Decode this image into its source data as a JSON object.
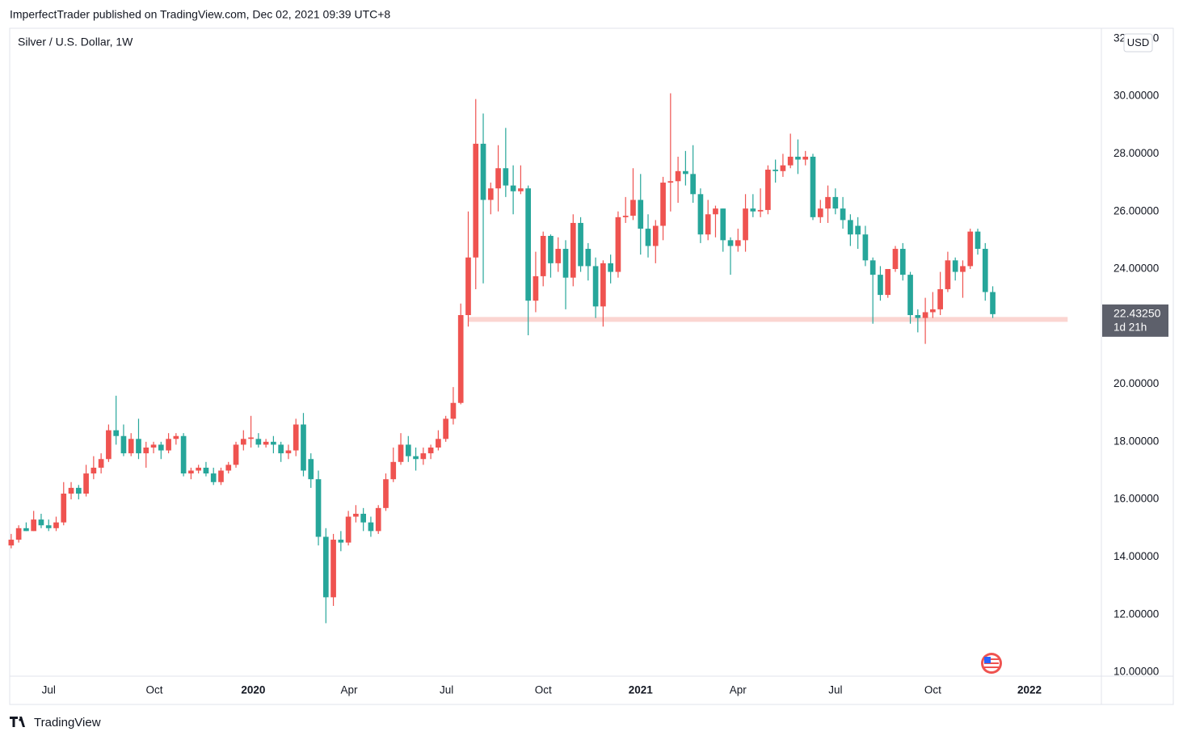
{
  "header": {
    "byline": "ImperfectTrader published on TradingView.com, Dec 02, 2021 09:39 UTC+8"
  },
  "footer": {
    "brand": "TradingView"
  },
  "chart_data": {
    "type": "candlestick",
    "title": "Silver / U.S. Dollar, 1W",
    "currency": "USD",
    "up_color": "#ef5350",
    "down_color": "#26a69a",
    "open": [
      14.4,
      14.6,
      15.0,
      14.9,
      15.3,
      15.1,
      15.0,
      15.2,
      16.2,
      16.4,
      16.2,
      16.9,
      17.1,
      17.4,
      18.4,
      18.2,
      17.6,
      18.1,
      17.6,
      17.8,
      17.9,
      17.7,
      18.1,
      18.2,
      16.9,
      17.0,
      17.1,
      16.9,
      16.6,
      17.0,
      17.2,
      17.9,
      18.1,
      18.1,
      17.9,
      18.0,
      17.9,
      17.6,
      17.7,
      18.6,
      17.4,
      16.7,
      14.7,
      12.6,
      14.6,
      14.5,
      15.4,
      15.5,
      15.2,
      14.9,
      15.7,
      16.7,
      17.3,
      17.9,
      17.5,
      17.4,
      17.6,
      17.8,
      18.1,
      18.8,
      19.35,
      22.4,
      24.4,
      28.35,
      26.4,
      26.8,
      27.5,
      26.9,
      26.7,
      26.8,
      22.9,
      23.75,
      25.15,
      24.2,
      24.7,
      23.7,
      25.6,
      24.7,
      24.1,
      22.7,
      24.2,
      23.9,
      25.8,
      25.85,
      26.4,
      25.4,
      24.8,
      25.5,
      27.0,
      27.05,
      27.4,
      27.3,
      26.6,
      25.2,
      25.9,
      26.1,
      25.0,
      24.8,
      25.0,
      26.1,
      26.0,
      26.05,
      27.45,
      27.4,
      27.6,
      27.9,
      27.8,
      27.9,
      25.8,
      26.1,
      26.5,
      26.1,
      25.7,
      25.5,
      25.2,
      24.3,
      23.8,
      23.1,
      24.0,
      24.7,
      23.8,
      22.4,
      22.3,
      22.5,
      22.6,
      23.3,
      24.3,
      23.9,
      24.1,
      25.3,
      24.7,
      23.2
    ],
    "high": [
      14.8,
      15.1,
      15.2,
      15.6,
      15.5,
      15.3,
      15.4,
      16.6,
      16.6,
      16.5,
      17.2,
      17.5,
      17.6,
      18.6,
      19.6,
      18.6,
      18.3,
      18.8,
      18.0,
      18.0,
      18.0,
      18.3,
      18.3,
      18.3,
      17.1,
      17.2,
      17.3,
      17.1,
      17.1,
      17.3,
      18.0,
      18.4,
      18.9,
      18.3,
      18.1,
      18.2,
      18.0,
      17.9,
      18.8,
      19.0,
      17.6,
      17.0,
      15.0,
      14.8,
      14.9,
      15.6,
      15.8,
      15.7,
      15.4,
      15.8,
      16.9,
      17.8,
      18.3,
      18.2,
      17.8,
      17.8,
      17.9,
      18.4,
      18.9,
      19.9,
      22.8,
      26.0,
      29.9,
      29.4,
      27.0,
      28.3,
      28.9,
      27.6,
      27.6,
      26.9,
      24.6,
      25.3,
      25.2,
      25.1,
      25.0,
      25.9,
      25.8,
      24.9,
      24.4,
      24.3,
      24.5,
      26.0,
      26.5,
      27.5,
      27.3,
      25.9,
      25.7,
      27.2,
      30.1,
      27.9,
      28.1,
      28.3,
      26.8,
      26.4,
      26.2,
      26.1,
      25.1,
      25.4,
      26.6,
      26.6,
      26.8,
      27.6,
      27.8,
      28.0,
      28.7,
      28.5,
      28.1,
      28.0,
      26.4,
      26.9,
      26.8,
      26.5,
      25.9,
      25.8,
      25.5,
      24.4,
      24.1,
      24.0,
      24.8,
      24.9,
      23.9,
      22.6,
      23.0,
      23.2,
      23.9,
      24.6,
      24.4,
      24.3,
      25.4,
      25.4,
      24.9,
      23.4
    ],
    "low": [
      14.3,
      14.5,
      14.9,
      14.9,
      15.0,
      14.9,
      14.9,
      15.1,
      16.0,
      16.0,
      16.1,
      16.7,
      16.9,
      17.3,
      17.9,
      17.5,
      17.5,
      17.4,
      17.1,
      17.6,
      17.4,
      17.6,
      17.9,
      16.8,
      16.7,
      16.9,
      16.8,
      16.5,
      16.5,
      16.9,
      17.1,
      17.7,
      17.8,
      17.8,
      17.8,
      17.6,
      17.3,
      17.4,
      17.5,
      16.8,
      16.4,
      14.4,
      11.7,
      12.3,
      14.2,
      14.4,
      15.2,
      14.9,
      14.7,
      14.8,
      15.6,
      16.6,
      17.2,
      17.3,
      17.0,
      17.2,
      17.4,
      17.7,
      18.0,
      18.6,
      19.3,
      22.0,
      23.3,
      23.5,
      25.9,
      26.0,
      26.5,
      25.9,
      26.6,
      21.7,
      22.5,
      23.4,
      23.7,
      23.9,
      22.6,
      23.4,
      23.9,
      23.6,
      22.3,
      22.0,
      23.5,
      23.7,
      25.6,
      25.7,
      24.5,
      24.4,
      24.2,
      25.0,
      26.0,
      26.3,
      26.9,
      26.3,
      24.9,
      25.0,
      25.1,
      24.6,
      23.8,
      24.6,
      24.6,
      25.8,
      25.8,
      25.9,
      27.0,
      27.2,
      27.5,
      27.3,
      27.6,
      25.7,
      25.6,
      25.6,
      25.9,
      25.4,
      24.8,
      24.7,
      24.1,
      22.1,
      22.9,
      23.0,
      23.9,
      23.6,
      22.1,
      21.8,
      21.4,
      22.3,
      22.4,
      23.2,
      23.6,
      23.0,
      24.0,
      24.5,
      22.9,
      22.3
    ],
    "close": [
      14.6,
      15.0,
      14.9,
      15.3,
      15.1,
      15.0,
      15.2,
      16.2,
      16.4,
      16.2,
      16.9,
      17.1,
      17.4,
      18.4,
      18.2,
      17.6,
      18.1,
      17.6,
      17.8,
      17.9,
      17.7,
      18.1,
      18.2,
      16.9,
      17.0,
      17.1,
      16.9,
      16.6,
      17.0,
      17.2,
      17.9,
      18.1,
      18.15,
      17.9,
      18.0,
      17.9,
      17.6,
      17.7,
      18.6,
      17.0,
      16.7,
      14.7,
      12.6,
      14.6,
      14.5,
      15.4,
      15.5,
      15.2,
      14.9,
      15.7,
      16.7,
      17.3,
      17.9,
      17.5,
      17.4,
      17.6,
      17.8,
      18.1,
      18.8,
      19.35,
      22.4,
      24.4,
      28.35,
      26.4,
      26.8,
      27.5,
      26.9,
      26.7,
      26.8,
      22.9,
      23.75,
      25.15,
      24.2,
      24.7,
      23.7,
      25.6,
      24.1,
      24.1,
      22.7,
      24.2,
      23.9,
      25.8,
      25.85,
      26.4,
      25.4,
      24.8,
      25.5,
      27.0,
      27.05,
      27.4,
      27.3,
      26.6,
      25.2,
      25.9,
      26.1,
      25.0,
      24.8,
      25.0,
      26.1,
      26.0,
      26.05,
      27.45,
      27.4,
      27.6,
      27.9,
      27.8,
      27.9,
      25.8,
      26.1,
      26.5,
      26.1,
      25.7,
      25.2,
      25.2,
      24.3,
      23.8,
      23.1,
      24.0,
      24.7,
      23.8,
      22.4,
      22.3,
      22.5,
      22.6,
      23.3,
      24.3,
      23.9,
      24.1,
      25.3,
      24.7,
      23.2,
      22.4325
    ],
    "last_price": {
      "value": 22.4325,
      "label": "22.43250"
    },
    "countdown": "1d 21h",
    "support_line": {
      "value": 22.25,
      "from": 61,
      "to": 141,
      "color": "#fbd5d1"
    },
    "xlim": [
      -0.2,
      145.5
    ],
    "xticks": [
      {
        "value": 5,
        "label": "Jul"
      },
      {
        "value": 19.1,
        "label": "Oct"
      },
      {
        "value": 32.3,
        "label": "2020"
      },
      {
        "value": 45.1,
        "label": "Apr"
      },
      {
        "value": 58.1,
        "label": "Jul"
      },
      {
        "value": 71,
        "label": "Oct"
      },
      {
        "value": 84,
        "label": "2021"
      },
      {
        "value": 97,
        "label": "Apr"
      },
      {
        "value": 110,
        "label": "Jul"
      },
      {
        "value": 123,
        "label": "Oct"
      },
      {
        "value": 135.9,
        "label": "2022"
      }
    ],
    "ylim": [
      9.86,
      32.36
    ],
    "yticks": [
      {
        "value": 10,
        "label": "10.00000"
      },
      {
        "value": 12,
        "label": "12.00000"
      },
      {
        "value": 14,
        "label": "14.00000"
      },
      {
        "value": 16,
        "label": "16.00000"
      },
      {
        "value": 18,
        "label": "18.00000"
      },
      {
        "value": 20,
        "label": "20.00000"
      },
      {
        "value": 22,
        "label": "22.00000"
      },
      {
        "value": 24,
        "label": "24.00000"
      },
      {
        "value": 26,
        "label": "26.00000"
      },
      {
        "value": 28,
        "label": "28.00000"
      },
      {
        "value": 30,
        "label": "30.00000"
      },
      {
        "value": 32,
        "label": "32.00000"
      }
    ]
  }
}
